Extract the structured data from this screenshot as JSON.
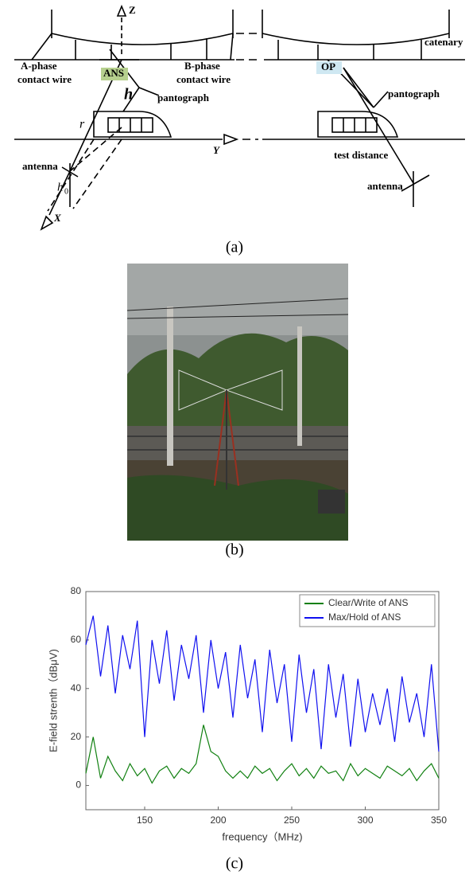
{
  "diagram": {
    "labels": {
      "z": "Z",
      "a_phase": "A-phase",
      "a_contact": "contact wire",
      "ans": "ANS",
      "h": "h",
      "pantograph_left": "pantograph",
      "b_phase": "B-phase",
      "b_contact": "contact wire",
      "r": "r",
      "y": "Y",
      "antenna_left": "antenna",
      "h0": "h",
      "h0_sub": "0",
      "x": "X",
      "op": "OP",
      "catenary": "catenary",
      "pantograph_right": "pantograph",
      "test_distance": "test distance",
      "antenna_right": "antenna"
    },
    "caption": "(a)"
  },
  "photo": {
    "caption": "(b)"
  },
  "chart_caption": "(c)",
  "chart_data": {
    "type": "line",
    "x_label": "frequency（MHz)",
    "y_label": "E-field strenth（dBμV)",
    "x": [
      110,
      115,
      120,
      125,
      130,
      135,
      140,
      145,
      150,
      155,
      160,
      165,
      170,
      175,
      180,
      185,
      190,
      195,
      200,
      205,
      210,
      215,
      220,
      225,
      230,
      235,
      240,
      245,
      250,
      255,
      260,
      265,
      270,
      275,
      280,
      285,
      290,
      295,
      300,
      305,
      310,
      315,
      320,
      325,
      330,
      335,
      340,
      345,
      350
    ],
    "series": [
      {
        "name": "Clear/Write of ANS",
        "color": "#108010",
        "values": [
          5,
          20,
          3,
          12,
          6,
          2,
          9,
          4,
          7,
          1,
          6,
          8,
          3,
          7,
          5,
          9,
          25,
          14,
          12,
          6,
          3,
          6,
          3,
          8,
          5,
          7,
          2,
          6,
          9,
          4,
          7,
          3,
          8,
          5,
          6,
          2,
          9,
          4,
          7,
          5,
          3,
          8,
          6,
          4,
          7,
          2,
          6,
          9,
          3
        ]
      },
      {
        "name": "Max/Hold of ANS",
        "color": "#1010f0",
        "values": [
          58,
          70,
          45,
          66,
          38,
          62,
          48,
          68,
          20,
          60,
          42,
          64,
          35,
          58,
          44,
          62,
          30,
          60,
          40,
          55,
          28,
          58,
          36,
          52,
          22,
          56,
          34,
          50,
          18,
          54,
          30,
          48,
          15,
          50,
          28,
          46,
          16,
          44,
          22,
          38,
          25,
          40,
          18,
          45,
          26,
          38,
          20,
          50,
          14
        ]
      }
    ],
    "xlim": [
      110,
      350
    ],
    "xticks": [
      150,
      200,
      250,
      300,
      350
    ],
    "ylim": [
      -10,
      80
    ],
    "yticks": [
      0,
      20,
      40,
      60,
      80
    ],
    "legend": "upper right"
  }
}
